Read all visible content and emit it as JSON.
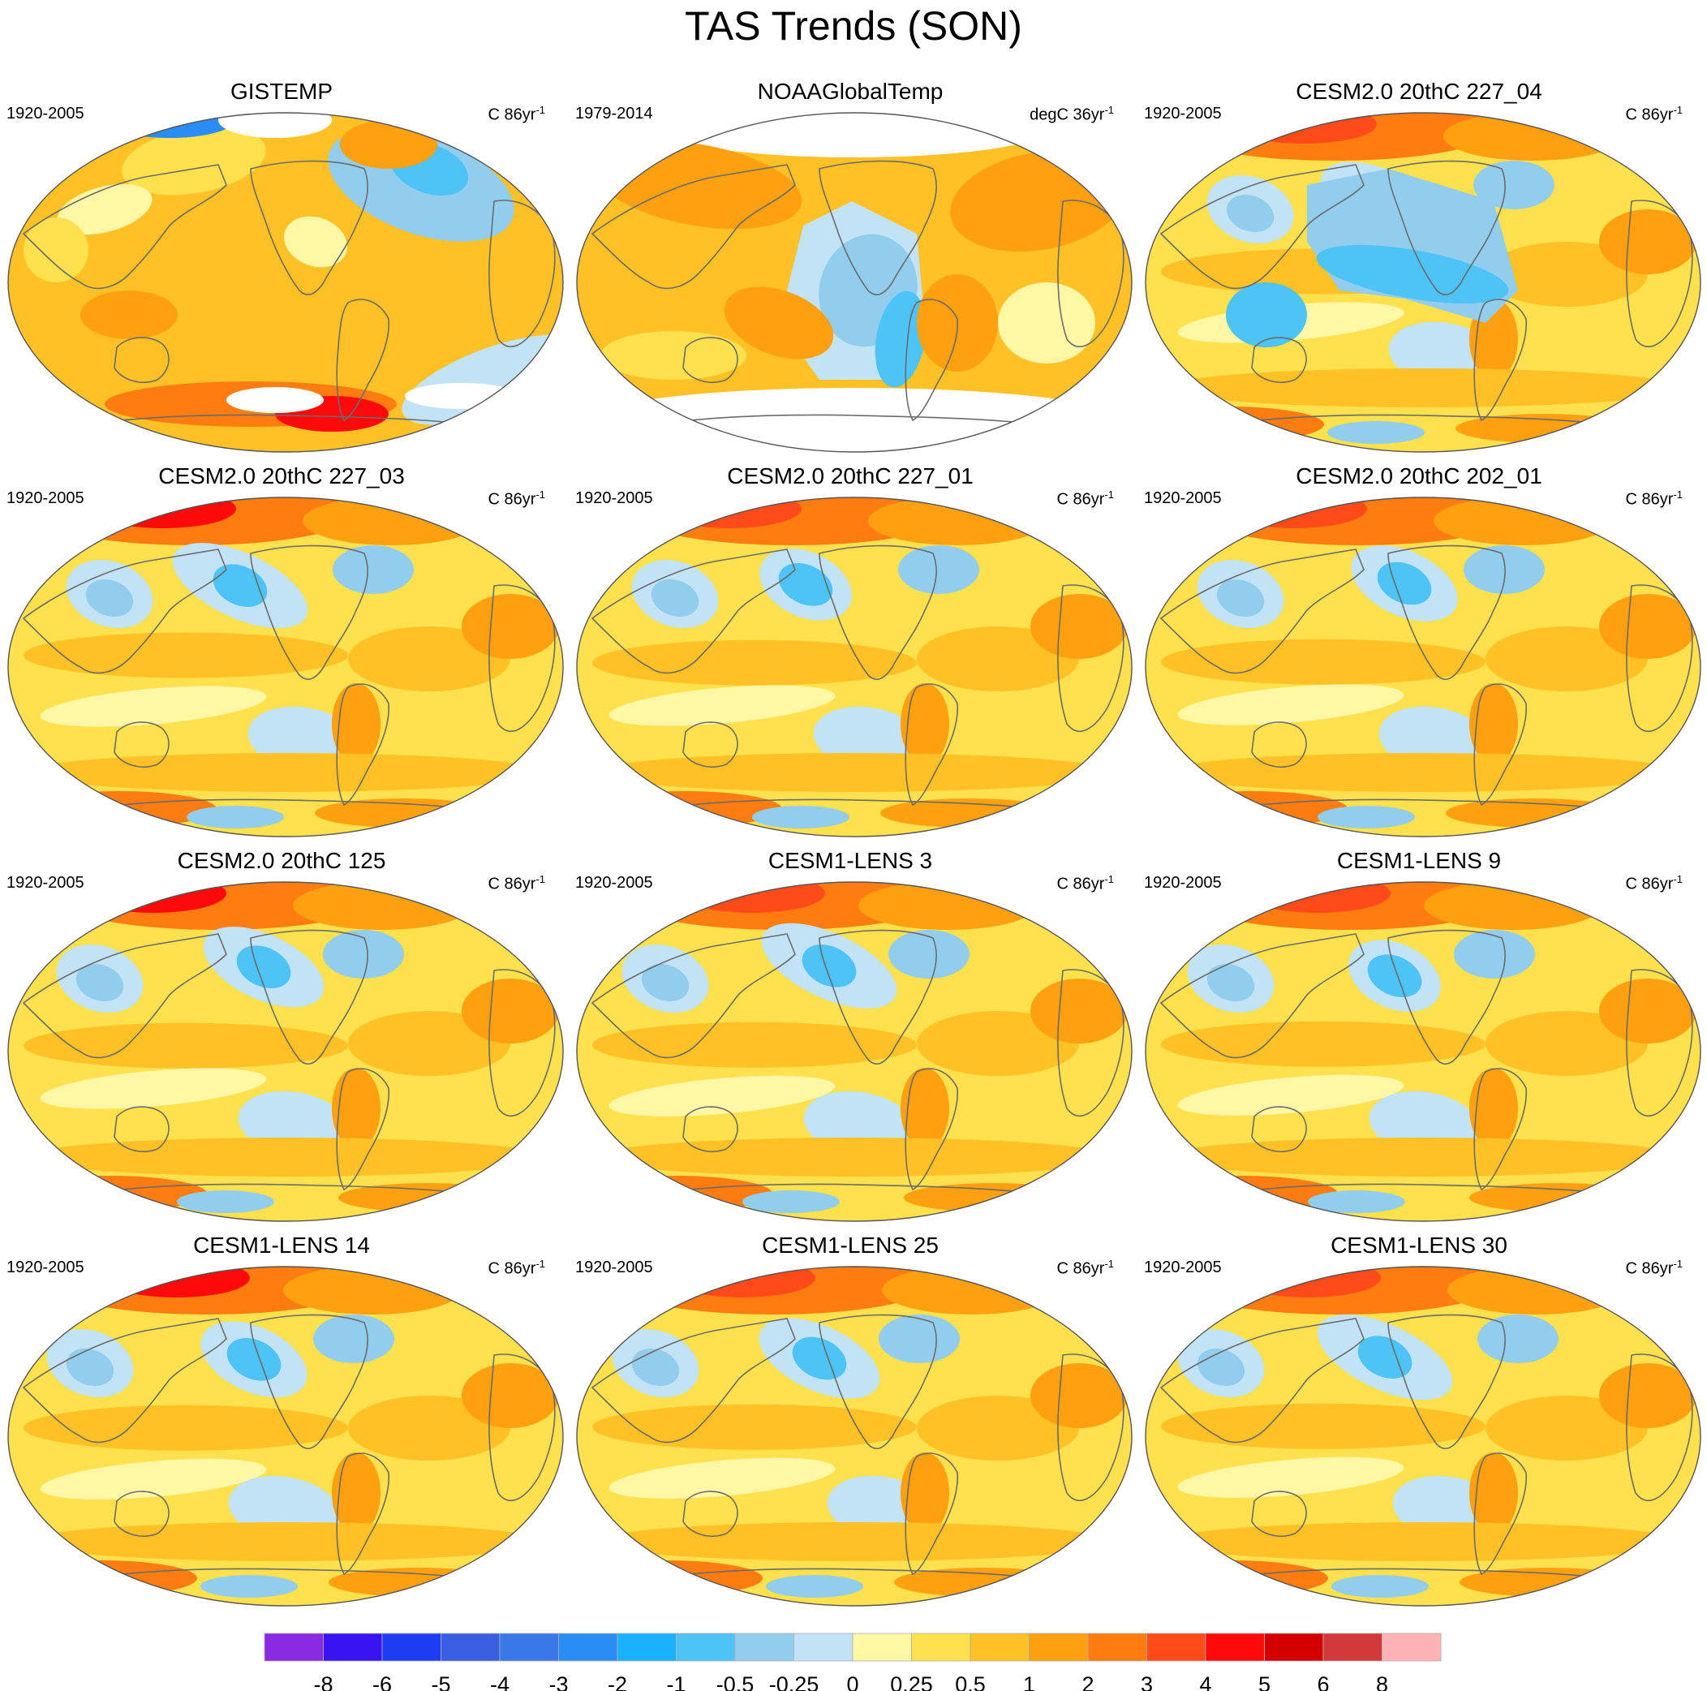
{
  "figure": {
    "title": "TAS Trends (SON)"
  },
  "panels": [
    {
      "title": "GISTEMP",
      "left_label": "1920-2005",
      "right_unit": "C 86yr",
      "right_sup": "-1",
      "scheme": "gistemp"
    },
    {
      "title": "NOAAGlobalTemp",
      "left_label": "1979-2014",
      "right_unit": "degC 36yr",
      "right_sup": "-1",
      "scheme": "noaa"
    },
    {
      "title": "CESM2.0 20thC 227_04",
      "left_label": "1920-2005",
      "right_unit": "C 86yr",
      "right_sup": "-1",
      "scheme": "model"
    },
    {
      "title": "CESM2.0 20thC 227_03",
      "left_label": "1920-2005",
      "right_unit": "C 86yr",
      "right_sup": "-1",
      "scheme": "model"
    },
    {
      "title": "CESM2.0 20thC 227_01",
      "left_label": "1920-2005",
      "right_unit": "C 86yr",
      "right_sup": "-1",
      "scheme": "model"
    },
    {
      "title": "CESM2.0 20thC 202_01",
      "left_label": "1920-2005",
      "right_unit": "C 86yr",
      "right_sup": "-1",
      "scheme": "model"
    },
    {
      "title": "CESM2.0 20thC 125",
      "left_label": "1920-2005",
      "right_unit": "C 86yr",
      "right_sup": "-1",
      "scheme": "model"
    },
    {
      "title": "CESM1-LENS 3",
      "left_label": "1920-2005",
      "right_unit": "C 86yr",
      "right_sup": "-1",
      "scheme": "model"
    },
    {
      "title": "CESM1-LENS 9",
      "left_label": "1920-2005",
      "right_unit": "C 86yr",
      "right_sup": "-1",
      "scheme": "model"
    },
    {
      "title": "CESM1-LENS 14",
      "left_label": "1920-2005",
      "right_unit": "C 86yr",
      "right_sup": "-1",
      "scheme": "model"
    },
    {
      "title": "CESM1-LENS 25",
      "left_label": "1920-2005",
      "right_unit": "C 86yr",
      "right_sup": "-1",
      "scheme": "model"
    },
    {
      "title": "CESM1-LENS 30",
      "left_label": "1920-2005",
      "right_unit": "C 86yr",
      "right_sup": "-1",
      "scheme": "model"
    }
  ],
  "colorbar": {
    "colors": [
      "#8a2be2",
      "#3a14f0",
      "#1f3cf5",
      "#3a5fe0",
      "#3a78e8",
      "#2a8cf5",
      "#1ab2ff",
      "#4ec3f7",
      "#93cdee",
      "#c2e3f5",
      "#fff7a6",
      "#ffe14d",
      "#ffc125",
      "#ffa010",
      "#ff7d10",
      "#ff4a1a",
      "#ff0a0a",
      "#d40000",
      "#d13a3a",
      "#ffb3b3"
    ],
    "labels": [
      "-8",
      "-6",
      "-5",
      "-4",
      "-3",
      "-2",
      "-1",
      "-0.5",
      "-0.25",
      "0",
      "0.25",
      "0.5",
      "1",
      "2",
      "3",
      "4",
      "5",
      "6",
      "8"
    ]
  }
}
